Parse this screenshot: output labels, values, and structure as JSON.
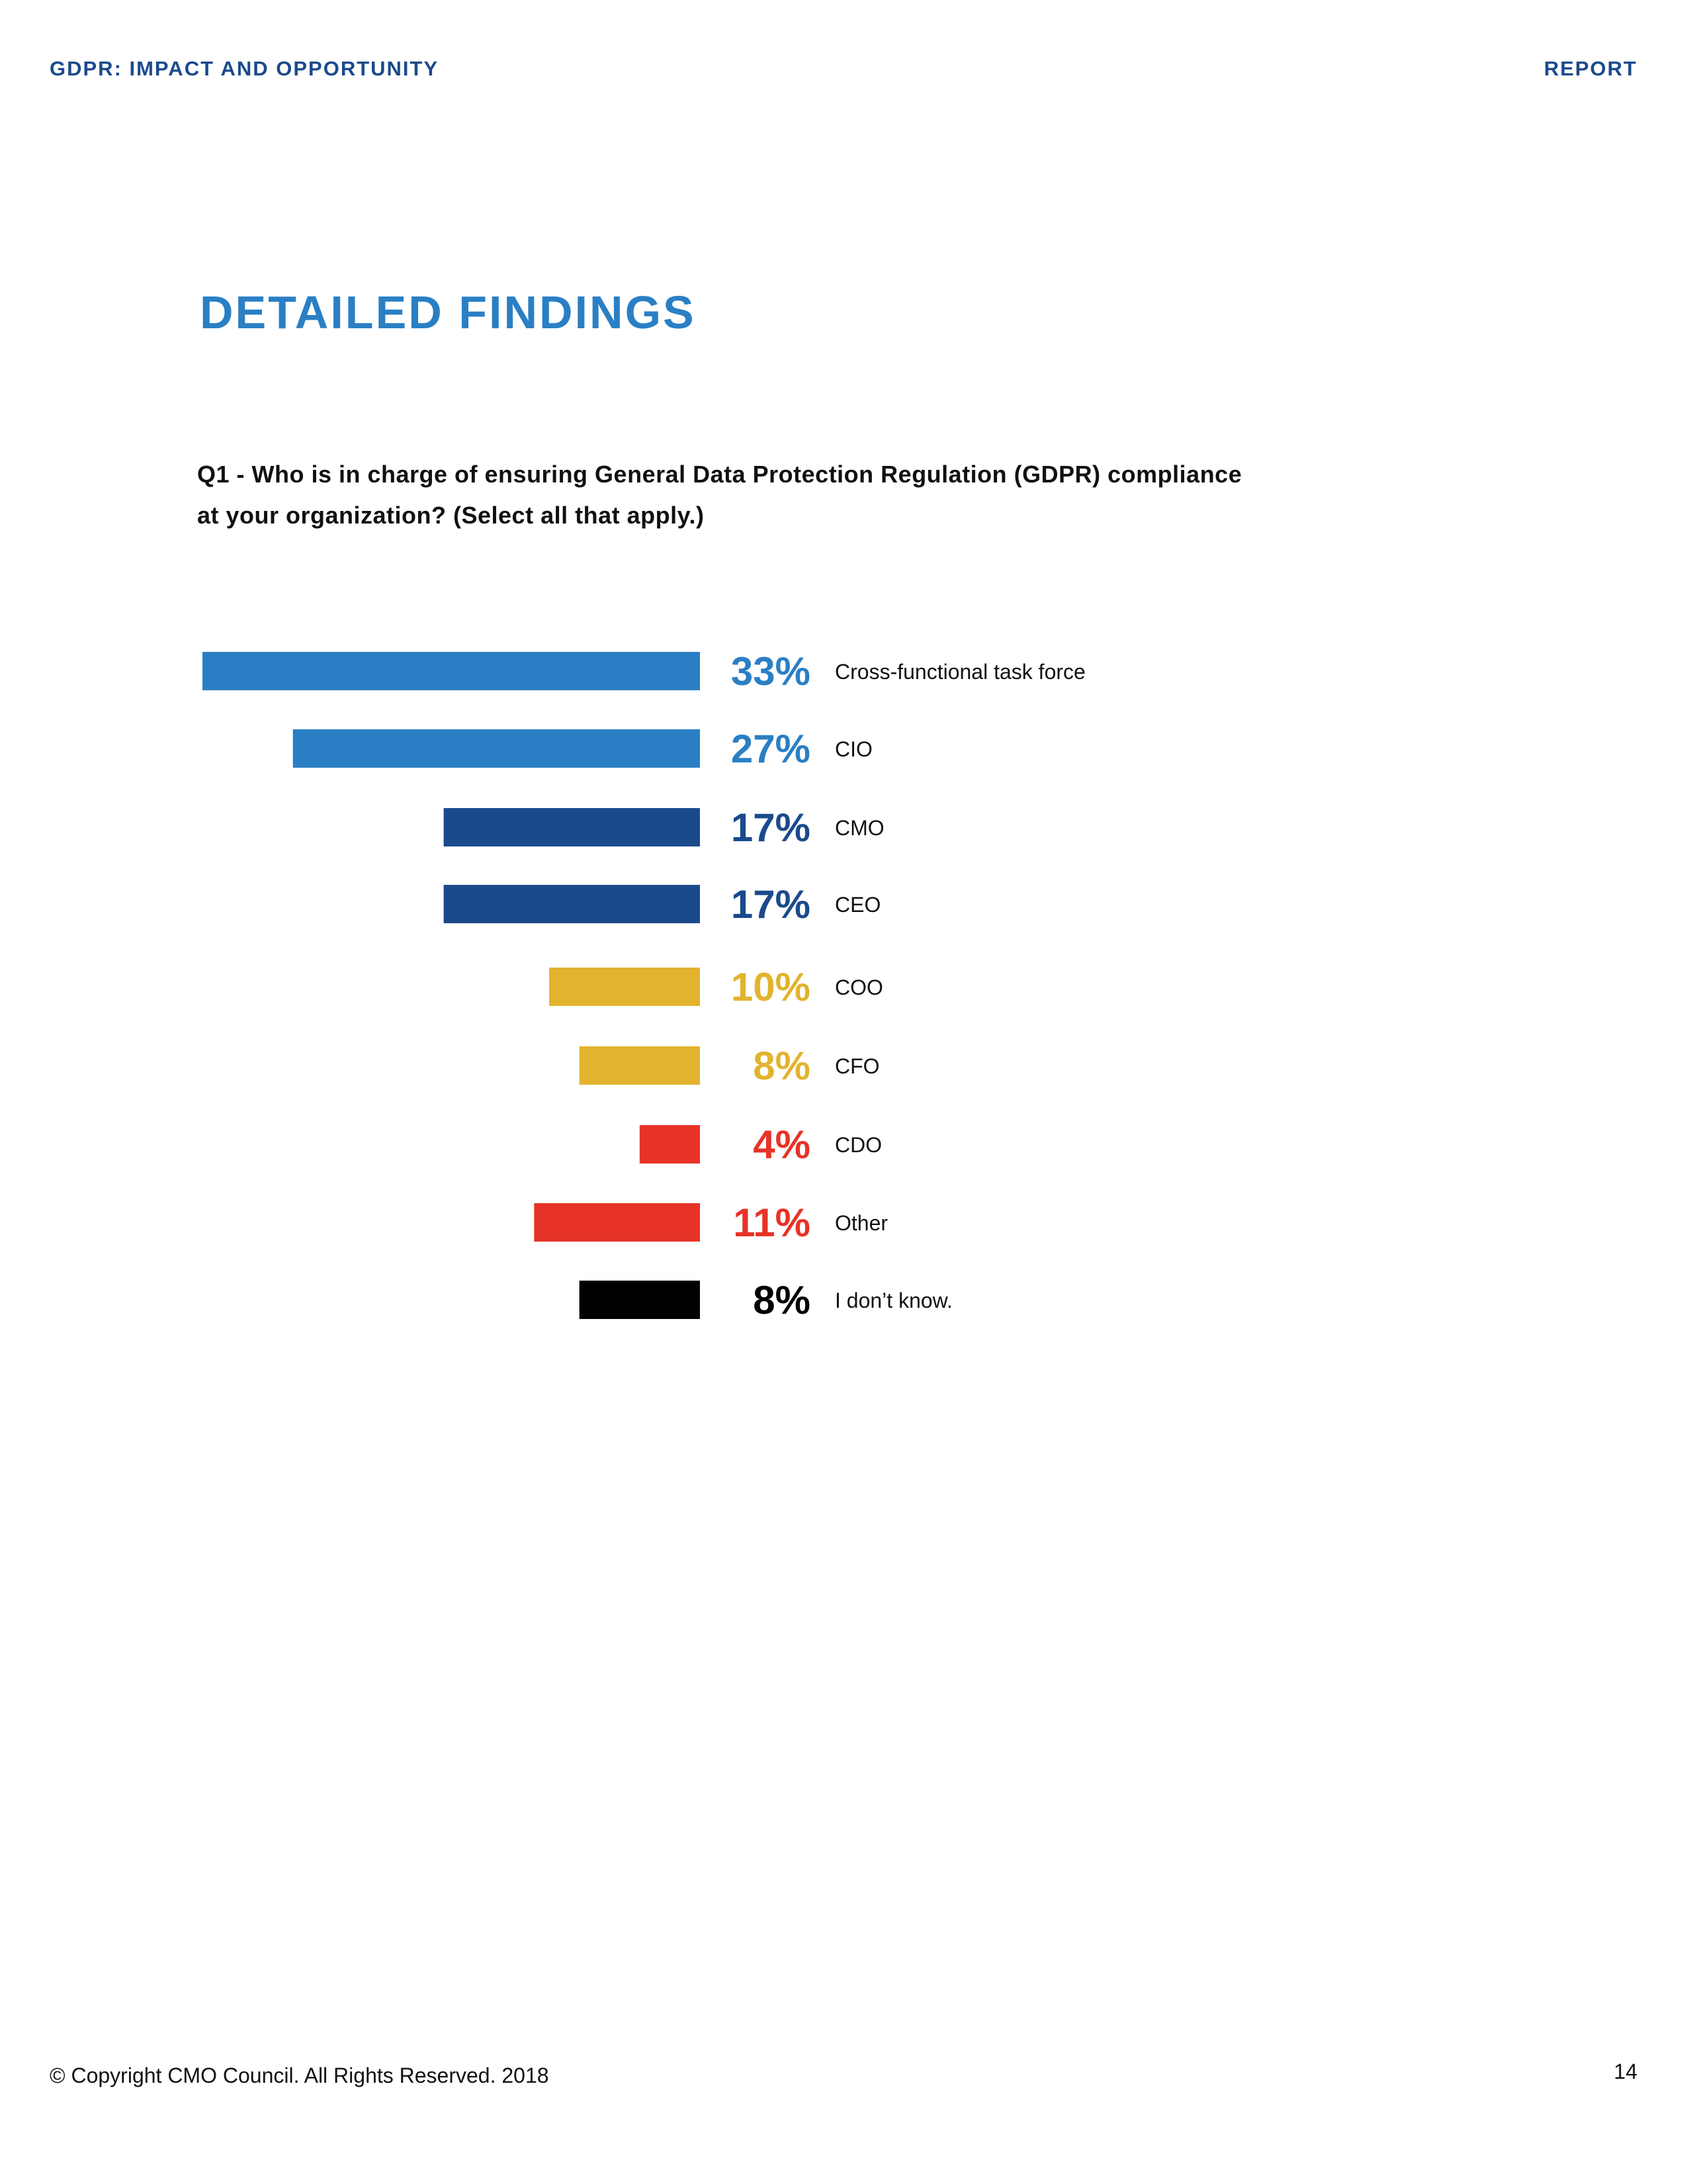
{
  "header": {
    "left": "GDPR: IMPACT AND OPPORTUNITY",
    "right": "REPORT"
  },
  "page_title": "DETAILED FINDINGS",
  "question": {
    "line1": "Q1 - Who is in charge of ensuring General Data Protection Regulation (GDPR) compliance",
    "line2": "at your organization? (Select all that apply.)"
  },
  "chart_data": {
    "type": "bar",
    "orientation": "horizontal",
    "title": "Q1 - Who is in charge of ensuring General Data Protection Regulation (GDPR) compliance at your organization? (Select all that apply.)",
    "xlabel": "",
    "ylabel": "",
    "xlim": [
      0,
      33
    ],
    "grid": false,
    "categories": [
      "Cross-functional task force",
      "CIO",
      "CMO",
      "CEO",
      "COO",
      "CFO",
      "CDO",
      "Other",
      "I don’t know."
    ],
    "values": [
      33,
      27,
      17,
      17,
      10,
      8,
      4,
      11,
      8
    ],
    "value_labels": [
      "33%",
      "27%",
      "17%",
      "17%",
      "10%",
      "8%",
      "4%",
      "11%",
      "8%"
    ],
    "colors": [
      "#2a7fc4",
      "#2a7fc4",
      "#1b4a8c",
      "#1b4a8c",
      "#e2b32e",
      "#e2b32e",
      "#e73327",
      "#e73327",
      "#000000"
    ]
  },
  "footer": {
    "copyright": "© Copyright CMO Council. All Rights Reserved. 2018",
    "page_number": "14"
  }
}
